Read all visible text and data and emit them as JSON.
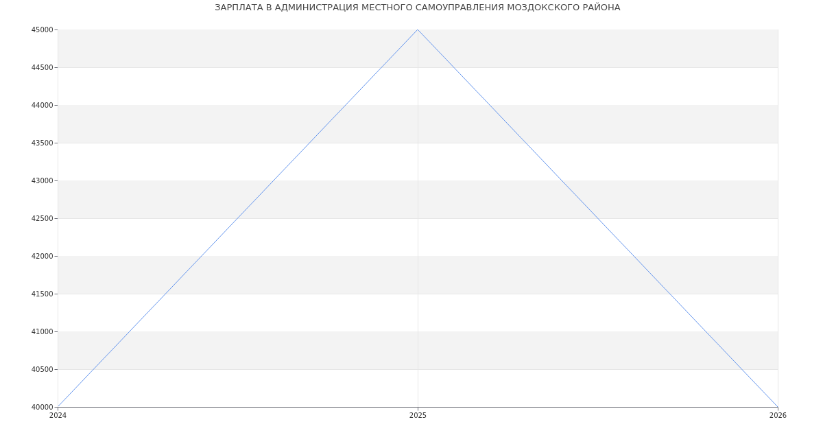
{
  "chart_data": {
    "type": "line",
    "title": "ЗАРПЛАТА В АДМИНИСТРАЦИЯ МЕСТНОГО САМОУПРАВЛЕНИЯ МОЗДОКСКОГО РАЙОНА",
    "categories": [
      "2024",
      "2025",
      "2026"
    ],
    "series": [
      {
        "color": "#6495ed",
        "values": [
          40000,
          45000,
          40000
        ]
      }
    ],
    "ylim": [
      40000,
      45000
    ],
    "yticks": [
      40000,
      40500,
      41000,
      41500,
      42000,
      42500,
      43000,
      43500,
      44000,
      44500,
      45000
    ],
    "grid": true,
    "marker": "none",
    "line_style": "solid",
    "legend": false,
    "bands": [
      {
        "axis": "y",
        "from": 40500,
        "to": 41000,
        "color": "#f3f3f3"
      },
      {
        "axis": "y",
        "from": 41500,
        "to": 42000,
        "color": "#f3f3f3"
      },
      {
        "axis": "y",
        "from": 42500,
        "to": 43000,
        "color": "#f3f3f3"
      },
      {
        "axis": "y",
        "from": 43500,
        "to": 44000,
        "color": "#f3f3f3"
      },
      {
        "axis": "y",
        "from": 44500,
        "to": 45000,
        "color": "#f3f3f3"
      }
    ]
  }
}
